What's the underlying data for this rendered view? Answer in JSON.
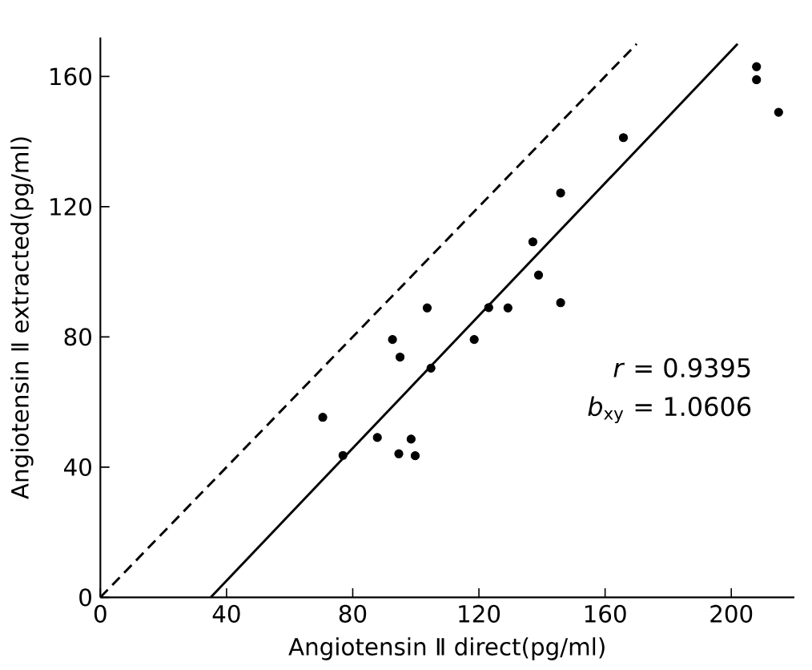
{
  "chart_data": {
    "type": "scatter",
    "xlabel": "Angiotensin Ⅱ direct(pg/ml)",
    "ylabel": "Angiotensin Ⅱ extracted(pg/ml)",
    "xlim": [
      0,
      220
    ],
    "ylim": [
      0,
      172
    ],
    "xticks": [
      0,
      40,
      80,
      120,
      160,
      200
    ],
    "yticks": [
      0,
      40,
      80,
      120,
      160
    ],
    "series": [
      {
        "marker": "circle",
        "color": "#000000",
        "x": [
          70.5,
          76.9,
          87.8,
          92.6,
          95.0,
          94.6,
          98.5,
          99.8,
          103.6,
          104.8,
          118.5,
          123.1,
          129.2,
          137.1,
          138.9,
          145.9,
          145.9,
          165.8,
          208,
          208,
          215
        ],
        "values": [
          55.3,
          43.6,
          49.1,
          79.2,
          73.8,
          44.1,
          48.6,
          43.5,
          88.9,
          70.4,
          79.2,
          89.0,
          88.9,
          109.2,
          99.0,
          124.2,
          90.5,
          141.2,
          163,
          159,
          149
        ]
      },
      {
        "type": "line",
        "line_style": "solid",
        "marker": "none",
        "color": "#000000",
        "x": [
          35,
          202
        ],
        "values": [
          0,
          170
        ]
      },
      {
        "type": "line",
        "line_style": "dashed",
        "marker": "none",
        "color": "#000000",
        "x": [
          0,
          170
        ],
        "values": [
          0,
          170
        ]
      }
    ],
    "annotations": [
      "*r* = 0.9395",
      "*b*$_{xy}$ = 1.0606"
    ]
  }
}
